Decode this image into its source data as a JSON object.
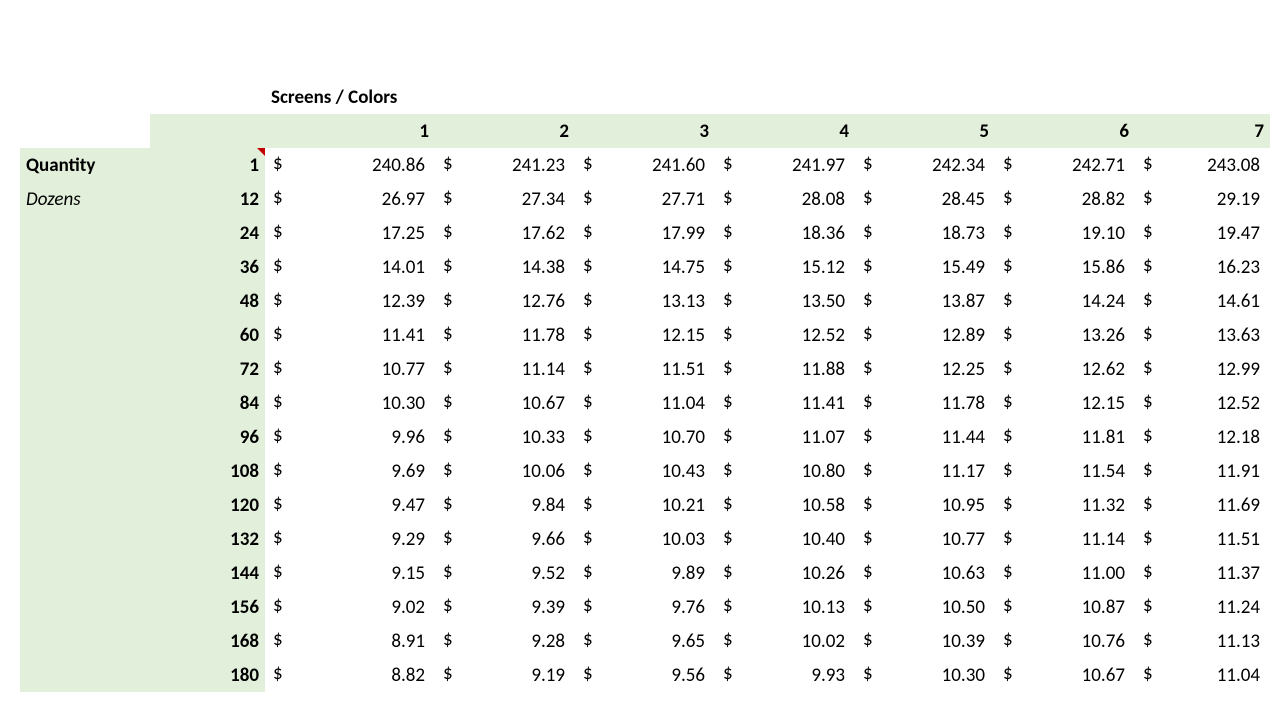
{
  "type": "table",
  "background_color": "#ffffff",
  "header_background": "#e2efda",
  "text_color": "#000000",
  "font_family": "Calibri",
  "font_size_pt": 14,
  "comment_indicator_color": "#c00000",
  "labels": {
    "section_title": "Screens / Colors",
    "row_label_1": "Quantity",
    "row_label_2": "Dozens",
    "currency_symbol": "$"
  },
  "columns": [
    "1",
    "2",
    "3",
    "4",
    "5",
    "6",
    "7"
  ],
  "quantities": [
    "1",
    "12",
    "24",
    "36",
    "48",
    "60",
    "72",
    "84",
    "96",
    "108",
    "120",
    "132",
    "144",
    "156",
    "168",
    "180"
  ],
  "rows": [
    [
      "240.86",
      "241.23",
      "241.60",
      "241.97",
      "242.34",
      "242.71",
      "243.08"
    ],
    [
      "26.97",
      "27.34",
      "27.71",
      "28.08",
      "28.45",
      "28.82",
      "29.19"
    ],
    [
      "17.25",
      "17.62",
      "17.99",
      "18.36",
      "18.73",
      "19.10",
      "19.47"
    ],
    [
      "14.01",
      "14.38",
      "14.75",
      "15.12",
      "15.49",
      "15.86",
      "16.23"
    ],
    [
      "12.39",
      "12.76",
      "13.13",
      "13.50",
      "13.87",
      "14.24",
      "14.61"
    ],
    [
      "11.41",
      "11.78",
      "12.15",
      "12.52",
      "12.89",
      "13.26",
      "13.63"
    ],
    [
      "10.77",
      "11.14",
      "11.51",
      "11.88",
      "12.25",
      "12.62",
      "12.99"
    ],
    [
      "10.30",
      "10.67",
      "11.04",
      "11.41",
      "11.78",
      "12.15",
      "12.52"
    ],
    [
      "9.96",
      "10.33",
      "10.70",
      "11.07",
      "11.44",
      "11.81",
      "12.18"
    ],
    [
      "9.69",
      "10.06",
      "10.43",
      "10.80",
      "11.17",
      "11.54",
      "11.91"
    ],
    [
      "9.47",
      "9.84",
      "10.21",
      "10.58",
      "10.95",
      "11.32",
      "11.69"
    ],
    [
      "9.29",
      "9.66",
      "10.03",
      "10.40",
      "10.77",
      "11.14",
      "11.51"
    ],
    [
      "9.15",
      "9.52",
      "9.89",
      "10.26",
      "10.63",
      "11.00",
      "11.37"
    ],
    [
      "9.02",
      "9.39",
      "9.76",
      "10.13",
      "10.50",
      "10.87",
      "11.24"
    ],
    [
      "8.91",
      "9.28",
      "9.65",
      "10.02",
      "10.39",
      "10.76",
      "11.13"
    ],
    [
      "8.82",
      "9.19",
      "9.56",
      "9.93",
      "10.30",
      "10.67",
      "11.04"
    ]
  ]
}
